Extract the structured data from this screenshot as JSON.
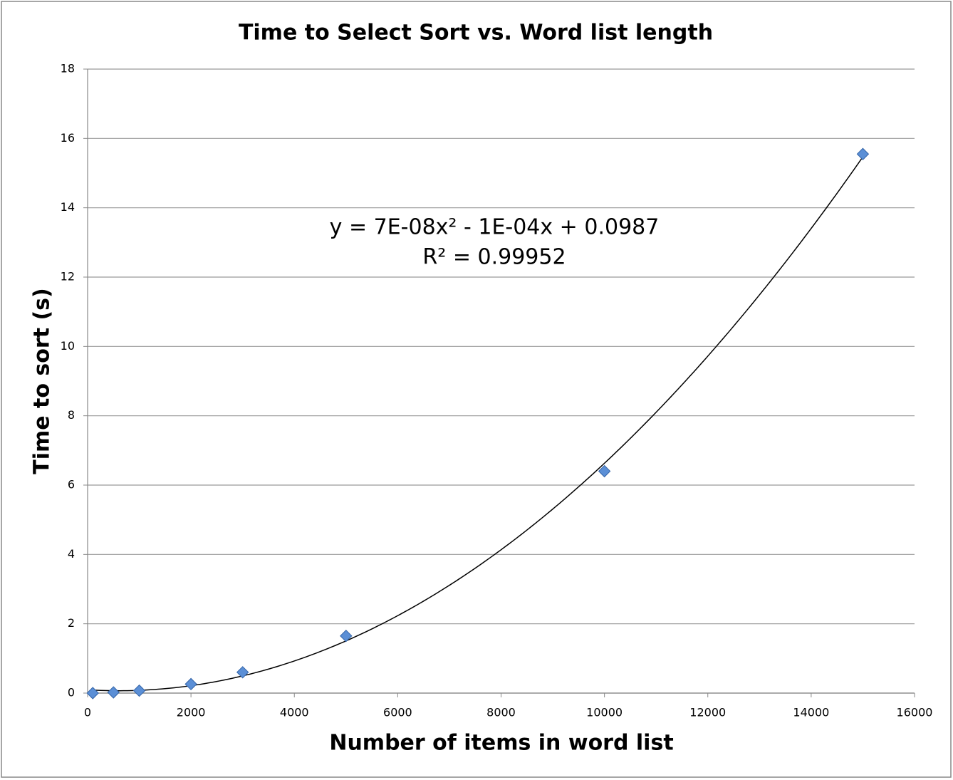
{
  "chart_data": {
    "type": "scatter",
    "title": "Time to Select Sort vs. Word list length",
    "x_label": "Number of items in word list",
    "y_label": "Time to sort (s)",
    "annotations": [
      "y = 7E-08x² - 1E-04x + 0.0987",
      "R² = 0.99952"
    ],
    "trendline": "polynomial",
    "series": [
      {
        "name": "Time to sort",
        "color": "#5b8fd6",
        "x": [
          100,
          500,
          1000,
          2000,
          3000,
          5000,
          10000,
          15000
        ],
        "values": [
          0.0,
          0.02,
          0.07,
          0.26,
          0.6,
          1.65,
          6.4,
          15.55
        ]
      }
    ],
    "xlim": [
      0,
      16000
    ],
    "xticks": [
      0,
      2000,
      4000,
      6000,
      8000,
      10000,
      12000,
      14000,
      16000
    ],
    "ylim": [
      0,
      18
    ],
    "yticks": [
      0,
      2,
      4,
      6,
      8,
      10,
      12,
      14,
      16,
      18
    ],
    "grid": true
  }
}
